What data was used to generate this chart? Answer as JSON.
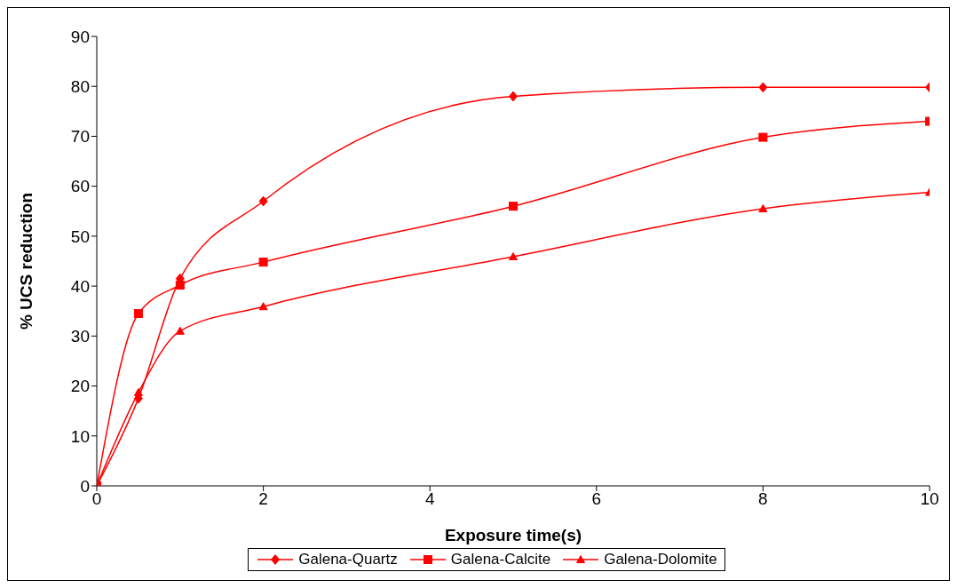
{
  "chart_data": {
    "type": "line",
    "xlabel": "Exposure time(s)",
    "ylabel": "% UCS reduction",
    "x": [
      0,
      0.5,
      1,
      2,
      5,
      8,
      10
    ],
    "series": [
      {
        "name": "Galena-Quartz",
        "color": "#ff0000",
        "marker": "diamond",
        "values": [
          0,
          17.5,
          41.5,
          57,
          78,
          79.8,
          79.8
        ]
      },
      {
        "name": "Galena-Calcite",
        "color": "#ff0000",
        "marker": "square",
        "values": [
          0,
          34.5,
          40.2,
          44.8,
          56,
          69.8,
          73
        ]
      },
      {
        "name": "Galena-Dolomite",
        "color": "#ff0000",
        "marker": "triangle",
        "values": [
          0,
          18.7,
          31,
          35.9,
          45.9,
          55.5,
          58.8
        ]
      }
    ],
    "xlim": [
      0,
      10
    ],
    "xticks": [
      0,
      2,
      4,
      6,
      8,
      10
    ],
    "ylim": [
      0,
      90
    ],
    "yticks": [
      0,
      10,
      20,
      30,
      40,
      50,
      60,
      70,
      80,
      90
    ],
    "grid": false,
    "legend": "bottom",
    "line_style": "solid"
  }
}
